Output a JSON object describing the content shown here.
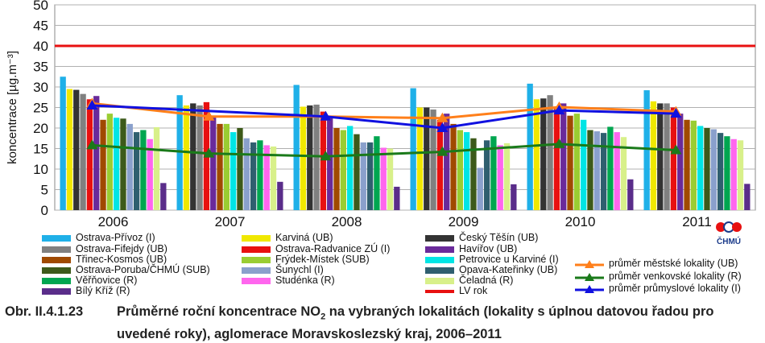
{
  "chart_data": {
    "type": "bar",
    "ylabel": "koncentrace [µg.m⁻³]",
    "ylim": [
      0,
      50
    ],
    "yticks": [
      "0",
      "5",
      "10",
      "15",
      "20",
      "25",
      "30",
      "35",
      "40",
      "45",
      "50"
    ],
    "grid": true,
    "categories": [
      "2006",
      "2007",
      "2008",
      "2009",
      "2010",
      "2011"
    ],
    "series": [
      {
        "name": "Ostrava-Přívoz (I)",
        "color": "#1fb0e8",
        "values": [
          32.5,
          28.0,
          30.5,
          29.7,
          30.8,
          29.2
        ]
      },
      {
        "name": "Karviná (UB)",
        "color": "#f0e800",
        "values": [
          29.5,
          25.5,
          25.2,
          25.0,
          27.0,
          26.5
        ]
      },
      {
        "name": "Český Těšín (UB)",
        "color": "#333333",
        "values": [
          29.3,
          26.0,
          25.5,
          25.0,
          27.2,
          26.0
        ]
      },
      {
        "name": "Ostrava-Fifejdy (UB)",
        "color": "#808080",
        "values": [
          28.3,
          25.5,
          25.7,
          24.5,
          28.0,
          26.0
        ]
      },
      {
        "name": "Ostrava-Radvanice ZÚ (I)",
        "color": "#e81010",
        "values": [
          27.0,
          26.3,
          24.0,
          22.0,
          25.0,
          25.0
        ]
      },
      {
        "name": "Havířov (UB)",
        "color": "#6a2a9a",
        "values": [
          27.8,
          22.8,
          23.0,
          23.5,
          26.0,
          23.5
        ]
      },
      {
        "name": "Třinec-Kosmos (UB)",
        "color": "#a04a00",
        "values": [
          22.0,
          21.0,
          20.0,
          21.0,
          23.0,
          22.0
        ]
      },
      {
        "name": "Frýdek-Místek (SUB)",
        "color": "#9acd32",
        "values": [
          23.5,
          21.0,
          19.5,
          19.5,
          23.5,
          21.8
        ]
      },
      {
        "name": "Petrovice u Karviné (I)",
        "color": "#00e5e5",
        "values": [
          22.5,
          19.0,
          20.5,
          19.0,
          22.0,
          20.5
        ]
      },
      {
        "name": "Ostrava-Poruba/ČHMÚ (SUB)",
        "color": "#3d5a1a",
        "values": [
          22.3,
          20.0,
          18.5,
          17.5,
          19.5,
          20.0
        ]
      },
      {
        "name": "Šunychl (I)",
        "color": "#8aa0cc",
        "values": [
          21.0,
          17.5,
          16.5,
          10.3,
          19.2,
          19.7
        ]
      },
      {
        "name": "Opava-Kateřinky (UB)",
        "color": "#2f5f6f",
        "values": [
          19.0,
          16.5,
          16.5,
          17.0,
          18.8,
          18.8
        ]
      },
      {
        "name": "Věřňovice (R)",
        "color": "#00a650",
        "values": [
          19.5,
          17.0,
          18.0,
          18.0,
          20.3,
          18.0
        ]
      },
      {
        "name": "Studénka (R)",
        "color": "#ff66ee",
        "values": [
          17.3,
          15.8,
          15.2,
          15.8,
          19.0,
          17.3
        ]
      },
      {
        "name": "Čeladná (R)",
        "color": "#d8f08a",
        "values": [
          20.2,
          15.5,
          15.0,
          16.3,
          17.8,
          17.0
        ]
      },
      {
        "name": "Bílý Kříž (R)",
        "color": "#5a2d8a",
        "values": [
          6.6,
          6.9,
          5.7,
          6.3,
          7.5,
          6.4
        ]
      }
    ],
    "lines": [
      {
        "name": "průměr městské lokality (UB)",
        "color": "#ff7f1a",
        "values": [
          26.0,
          22.8,
          22.8,
          22.4,
          25.1,
          24.0
        ]
      },
      {
        "name": "průměr venkovské lokality (R)",
        "color": "#1a7a1a",
        "values": [
          15.8,
          13.8,
          13.1,
          14.2,
          16.1,
          14.6
        ]
      },
      {
        "name": "průměr průmyslové lokality (I)",
        "color": "#1010e0",
        "values": [
          25.5,
          null,
          22.8,
          20.0,
          24.3,
          23.5
        ]
      }
    ],
    "limit_line": {
      "name": "LV rok",
      "color": "#e81010",
      "value": 40
    }
  },
  "caption": {
    "prefix": "Obr. II.4.1.23",
    "text_before_sub": "Průměrné roční koncentrace NO",
    "subscript": "2",
    "text_after_sub": " na vybraných lokalitách (lokality s úplnou datovou řadou pro uvedené roky), aglomerace Moravskoslezský kraj, 2006–2011"
  },
  "logo": {
    "text": "ČHMÚ"
  }
}
